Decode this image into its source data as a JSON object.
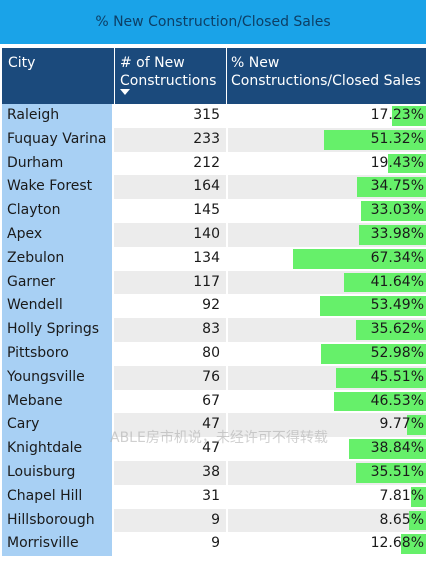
{
  "title": "% New Construction/Closed Sales",
  "watermark": "ABLE房市机说，未经许可不得转载",
  "colors": {
    "title_bg": "#1aa3e8",
    "header_bg": "#1b4a7c",
    "city_col_bg": "#a8d0f4",
    "bar": "#66f06a"
  },
  "headers": {
    "city": "City",
    "count_line1": "# of New",
    "count_line2": "Constructions",
    "pct_line1": "% New",
    "pct_line2": "Constructions/Closed Sales"
  },
  "chart_data": {
    "type": "table",
    "title": "% New Construction/Closed Sales",
    "columns": [
      "City",
      "# of New Constructions",
      "% New Constructions/Closed Sales"
    ],
    "sorted_by": "# of New Constructions (descending)",
    "bar_column": "% New Constructions/Closed Sales",
    "rows": [
      {
        "city": "Raleigh",
        "count": "315",
        "pct": "17.23%",
        "pct_value": 17.23
      },
      {
        "city": "Fuquay Varina",
        "count": "233",
        "pct": "51.32%",
        "pct_value": 51.32
      },
      {
        "city": "Durham",
        "count": "212",
        "pct": "19.43%",
        "pct_value": 19.43
      },
      {
        "city": "Wake Forest",
        "count": "164",
        "pct": "34.75%",
        "pct_value": 34.75
      },
      {
        "city": "Clayton",
        "count": "145",
        "pct": "33.03%",
        "pct_value": 33.03
      },
      {
        "city": "Apex",
        "count": "140",
        "pct": "33.98%",
        "pct_value": 33.98
      },
      {
        "city": "Zebulon",
        "count": "134",
        "pct": "67.34%",
        "pct_value": 67.34
      },
      {
        "city": "Garner",
        "count": "117",
        "pct": "41.64%",
        "pct_value": 41.64
      },
      {
        "city": "Wendell",
        "count": "92",
        "pct": "53.49%",
        "pct_value": 53.49
      },
      {
        "city": "Holly Springs",
        "count": "83",
        "pct": "35.62%",
        "pct_value": 35.62
      },
      {
        "city": "Pittsboro",
        "count": "80",
        "pct": "52.98%",
        "pct_value": 52.98
      },
      {
        "city": "Youngsville",
        "count": "76",
        "pct": "45.51%",
        "pct_value": 45.51
      },
      {
        "city": "Mebane",
        "count": "67",
        "pct": "46.53%",
        "pct_value": 46.53
      },
      {
        "city": "Cary",
        "count": "47",
        "pct": "9.77%",
        "pct_value": 9.77
      },
      {
        "city": "Knightdale",
        "count": "47",
        "pct": "38.84%",
        "pct_value": 38.84
      },
      {
        "city": "Louisburg",
        "count": "38",
        "pct": "35.51%",
        "pct_value": 35.51
      },
      {
        "city": "Chapel Hill",
        "count": "31",
        "pct": "7.81%",
        "pct_value": 7.81
      },
      {
        "city": "Hillsborough",
        "count": "9",
        "pct": "8.65%",
        "pct_value": 8.65
      },
      {
        "city": "Morrisville",
        "count": "9",
        "pct": "12.68%",
        "pct_value": 12.68
      }
    ]
  }
}
